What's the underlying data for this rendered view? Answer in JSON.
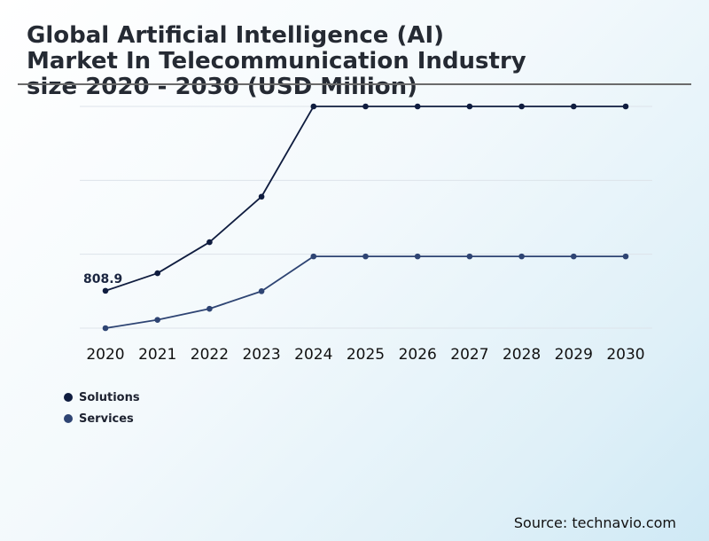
{
  "title_lines": [
    "Global Artificial Intelligence (AI)",
    "Market In Telecommunication Industry",
    "size 2020 - 2030 (USD Million)"
  ],
  "source": "Source: technavio.com",
  "colors": {
    "solutions": "#0f1c3f",
    "services": "#2e4473",
    "grid": "#dde3ea",
    "rule": "#6b6b6b"
  },
  "chart_data": {
    "type": "line",
    "title": "Global Artificial Intelligence (AI) Market In Telecommunication Industry size 2020 - 2030 (USD Million)",
    "xlabel": "",
    "ylabel": "",
    "categories": [
      "2020",
      "2021",
      "2022",
      "2023",
      "2024",
      "2025",
      "2026",
      "2027",
      "2028",
      "2029",
      "2030"
    ],
    "series": [
      {
        "name": "Solutions",
        "values": [
          808.9,
          1048,
          1471,
          2091,
          3320,
          3320,
          3320,
          3320,
          3320,
          3320,
          3320
        ]
      },
      {
        "name": "Services",
        "values": [
          300,
          413,
          564,
          803,
          1277,
          1277,
          1277,
          1277,
          1277,
          1277,
          1277
        ]
      }
    ],
    "data_labels": [
      {
        "series": "Solutions",
        "category": "2020",
        "text": "808.9"
      }
    ],
    "ylim": [
      300,
      3320
    ],
    "grid": true,
    "gridlines": 4,
    "legend_position": "bottom-left"
  }
}
